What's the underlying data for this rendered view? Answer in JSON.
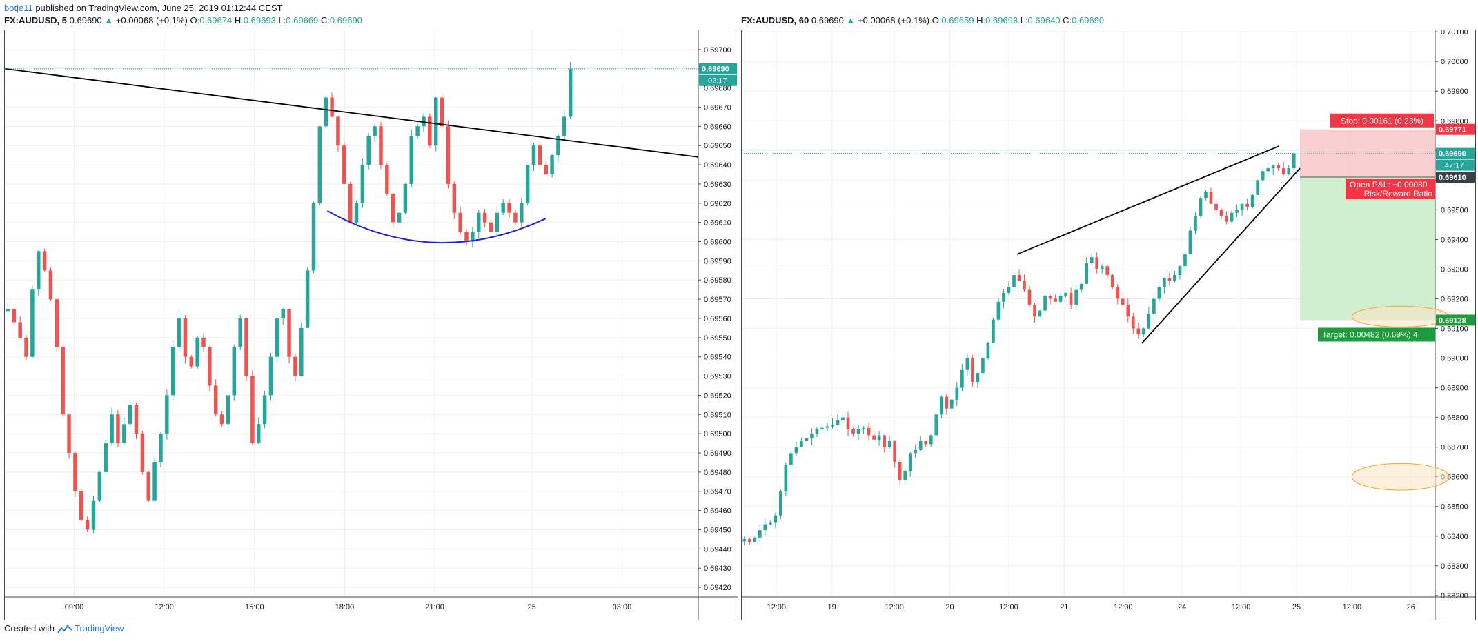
{
  "header": {
    "author": "botje11",
    "published": "published on TradingView.com, June 25, 2019 01:12:44 CEST"
  },
  "footer": {
    "created_with": "Created with",
    "brand": "TradingView",
    "logo_icon": "tradingview-logo-icon"
  },
  "colors": {
    "bull": "#26a69a",
    "bear": "#ef5350",
    "trend": "#000000",
    "curve": "#1f1fd6",
    "stop_zone": "#f8c6c6",
    "target_zone": "#c8ecc8",
    "ellipse": "#f5a623"
  },
  "chart_data": [
    {
      "type": "candlestick",
      "symbol": "FX:AUDUSD",
      "interval": "5",
      "legend": {
        "symbol": "FX:AUDUSD, 5",
        "last": "0.69690",
        "change": "+0.00068 (+0.1%)",
        "o_label": "O:",
        "o": "0.69674",
        "h_label": "H:",
        "h": "0.69693",
        "l_label": "L:",
        "l": "0.69669",
        "c_label": "C:",
        "c": "0.69690"
      },
      "ylim": [
        0.69415,
        0.6971
      ],
      "y_ticks": [
        "0.69700",
        "0.69690",
        "0.69680",
        "0.69670",
        "0.69660",
        "0.69650",
        "0.69640",
        "0.69630",
        "0.69620",
        "0.69610",
        "0.69600",
        "0.69590",
        "0.69580",
        "0.69570",
        "0.69560",
        "0.69550",
        "0.69540",
        "0.69530",
        "0.69520",
        "0.69510",
        "0.69500",
        "0.69490",
        "0.69480",
        "0.69470",
        "0.69460",
        "0.69450",
        "0.69440",
        "0.69430",
        "0.69420"
      ],
      "x_ticks": [
        {
          "label": "09:00",
          "pos": 0.1
        },
        {
          "label": "12:00",
          "pos": 0.23
        },
        {
          "label": "15:00",
          "pos": 0.36
        },
        {
          "label": "18:00",
          "pos": 0.49
        },
        {
          "label": "21:00",
          "pos": 0.62
        },
        {
          "label": "25",
          "pos": 0.76
        },
        {
          "label": "03:00",
          "pos": 0.89
        }
      ],
      "price_label": "0.69690",
      "countdown": "02:17",
      "path": [
        0.69565,
        0.69558,
        0.6955,
        0.6954,
        0.69575,
        0.69595,
        0.69585,
        0.6957,
        0.69545,
        0.6951,
        0.6949,
        0.6947,
        0.69455,
        0.6945,
        0.69465,
        0.6948,
        0.69495,
        0.6951,
        0.69495,
        0.69505,
        0.69515,
        0.695,
        0.6948,
        0.69465,
        0.69485,
        0.695,
        0.6952,
        0.69545,
        0.6956,
        0.6954,
        0.69535,
        0.6955,
        0.69545,
        0.69525,
        0.6951,
        0.69505,
        0.6952,
        0.69545,
        0.6956,
        0.6953,
        0.69495,
        0.69505,
        0.6952,
        0.6954,
        0.6956,
        0.69565,
        0.6954,
        0.6953,
        0.69555,
        0.69585,
        0.6962,
        0.6966,
        0.69675,
        0.69665,
        0.6965,
        0.6963,
        0.6961,
        0.6962,
        0.6964,
        0.69655,
        0.6966,
        0.6964,
        0.69625,
        0.6961,
        0.69615,
        0.6963,
        0.69655,
        0.6966,
        0.69665,
        0.6965,
        0.69675,
        0.6966,
        0.6963,
        0.69615,
        0.69605,
        0.696,
        0.69605,
        0.69615,
        0.6961,
        0.69605,
        0.69615,
        0.6962,
        0.69615,
        0.6961,
        0.6962,
        0.6964,
        0.6965,
        0.6964,
        0.69635,
        0.69645,
        0.69655,
        0.69665,
        0.6969
      ],
      "drawings": {
        "trendline": {
          "x1": 0.0,
          "y1": 0.6969,
          "x2": 1.0,
          "y2": 0.69644
        },
        "curve": {
          "x1": 0.465,
          "y1": 0.69616,
          "cx": 0.62,
          "cy": 0.69585,
          "x2": 0.78,
          "y2": 0.69612
        },
        "last_line": 0.6969
      }
    },
    {
      "type": "candlestick",
      "symbol": "FX:AUDUSD",
      "interval": "60",
      "legend": {
        "symbol": "FX:AUDUSD, 60",
        "last": "0.69690",
        "change": "+0.00068 (+0.1%)",
        "o_label": "O:",
        "o": "0.69659",
        "h_label": "H:",
        "h": "0.69693",
        "l_label": "L:",
        "l": "0.69640",
        "c_label": "C:",
        "c": "0.69690"
      },
      "ylim": [
        0.68195,
        0.70105
      ],
      "y_ticks": [
        "0.70100",
        "0.70000",
        "0.69900",
        "0.69800",
        "0.69700",
        "0.69600",
        "0.69500",
        "0.69400",
        "0.69300",
        "0.69200",
        "0.69100",
        "0.69000",
        "0.68900",
        "0.68800",
        "0.68700",
        "0.68600",
        "0.68500",
        "0.68400",
        "0.68300",
        "0.68200"
      ],
      "x_ticks": [
        {
          "label": "12:00",
          "pos": 0.05
        },
        {
          "label": "19",
          "pos": 0.13
        },
        {
          "label": "12:00",
          "pos": 0.22
        },
        {
          "label": "20",
          "pos": 0.3
        },
        {
          "label": "12:00",
          "pos": 0.385
        },
        {
          "label": "21",
          "pos": 0.465
        },
        {
          "label": "12:00",
          "pos": 0.55
        },
        {
          "label": "24",
          "pos": 0.635
        },
        {
          "label": "12:00",
          "pos": 0.72
        },
        {
          "label": "25",
          "pos": 0.8
        },
        {
          "label": "12:00",
          "pos": 0.88
        },
        {
          "label": "26",
          "pos": 0.965
        }
      ],
      "price_label": "0.69690",
      "countdown": "47:17",
      "entry_label": "0.69610",
      "stop_price_label": "0.69771",
      "target_price_label": "0.69128",
      "stop_text": "Stop: 0.00161 (0.23%)",
      "open_pl_text": "Open P&L: −0.00080",
      "risk_reward_text": "Risk/Reward Ratio",
      "target_text": "Target: 0.00482 (0.69%) 4",
      "path": [
        0.6839,
        0.6838,
        0.68395,
        0.6842,
        0.6844,
        0.68445,
        0.6847,
        0.6855,
        0.6864,
        0.6868,
        0.687,
        0.6872,
        0.6873,
        0.68745,
        0.6876,
        0.68765,
        0.6877,
        0.68775,
        0.6879,
        0.688,
        0.6876,
        0.68745,
        0.6876,
        0.68765,
        0.6874,
        0.68725,
        0.6874,
        0.687,
        0.6872,
        0.6865,
        0.6859,
        0.6862,
        0.6868,
        0.6869,
        0.6872,
        0.6871,
        0.6874,
        0.6881,
        0.6887,
        0.6883,
        0.6886,
        0.689,
        0.6896,
        0.69,
        0.6892,
        0.6895,
        0.69,
        0.6905,
        0.6913,
        0.6919,
        0.6922,
        0.6924,
        0.6928,
        0.6926,
        0.6923,
        0.6918,
        0.6914,
        0.6916,
        0.6921,
        0.692,
        0.6919,
        0.6921,
        0.6922,
        0.6918,
        0.6923,
        0.6925,
        0.6932,
        0.6934,
        0.693,
        0.6931,
        0.6928,
        0.6924,
        0.692,
        0.6918,
        0.6914,
        0.691,
        0.6908,
        0.691,
        0.6915,
        0.692,
        0.6924,
        0.6927,
        0.6926,
        0.6928,
        0.6931,
        0.6935,
        0.6943,
        0.6948,
        0.6954,
        0.6956,
        0.6952,
        0.695,
        0.6948,
        0.6946,
        0.6949,
        0.695,
        0.6952,
        0.6951,
        0.6955,
        0.696,
        0.6963,
        0.6964,
        0.6965,
        0.6964,
        0.6962,
        0.6964,
        0.6969
      ],
      "drawings": {
        "wedge_upper": {
          "x1": 0.397,
          "y1": 0.6935,
          "x2": 0.775,
          "y2": 0.69715
        },
        "wedge_lower": {
          "x1": 0.577,
          "y1": 0.6905,
          "x2": 0.805,
          "y2": 0.6964
        },
        "position": {
          "x1": 0.805,
          "x2": 1.0,
          "entry": 0.6961,
          "stop": 0.69771,
          "target": 0.69128
        },
        "ellipses": [
          {
            "cx": 0.95,
            "cy": 0.6914,
            "rx": 0.07,
            "ry": 0.00035
          },
          {
            "cx": 0.95,
            "cy": 0.686,
            "rx": 0.07,
            "ry": 0.00045
          }
        ],
        "last_line": 0.6969
      }
    }
  ]
}
